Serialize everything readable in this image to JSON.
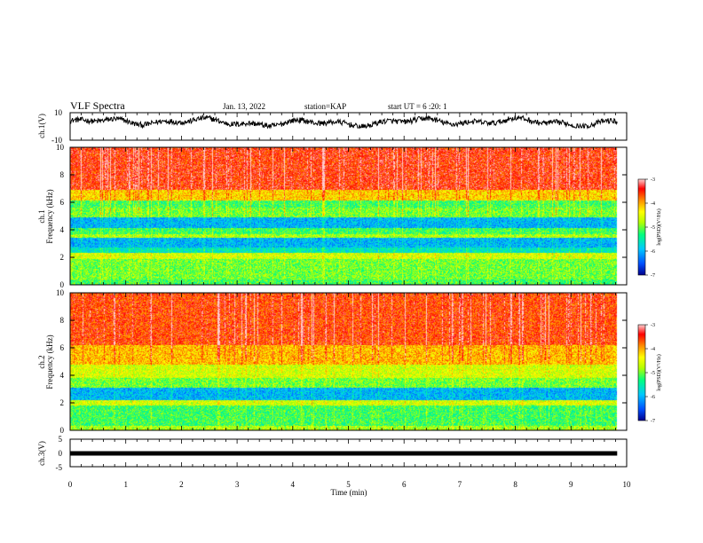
{
  "header": {
    "title": "VLF Spectra",
    "date": "Jan. 13, 2022",
    "station": "station=KAP",
    "start": "start UT = 6 :20: 1"
  },
  "colors": {
    "colormap": [
      "#00008c",
      "#0050ff",
      "#00c8ff",
      "#00ff80",
      "#b4ff00",
      "#ffff00",
      "#ff8c00",
      "#ff0000",
      "#ffd0d0"
    ]
  },
  "chart_data": [
    {
      "type": "line",
      "panel": "ch1-waveform",
      "ylabel": "ch.1(V)",
      "ylim": [
        -10,
        10
      ],
      "yticks": [
        "10",
        "-10"
      ],
      "x_range_min": [
        0,
        9.83
      ],
      "description_values": {
        "mean_V": 3,
        "amplitude_V": 4
      }
    },
    {
      "type": "heatmap",
      "panel": "ch1-spectrogram",
      "ylabel_line1": "ch.1",
      "ylabel_line2": "Frequency (kHz)",
      "ylim": [
        0,
        10
      ],
      "yticks": [
        "0",
        "2",
        "4",
        "6",
        "8",
        "10"
      ],
      "colorbar_label": "log(PSD)(V²/Hz)",
      "colorbar_range": [
        -7,
        -3
      ],
      "colorbar_ticks": [
        "-3",
        "-4",
        "-5",
        "-6",
        "-7"
      ],
      "bands_kHz": [
        {
          "from": 0,
          "to": 0.4,
          "log_psd": -5.2
        },
        {
          "from": 0.4,
          "to": 1.9,
          "log_psd": -5.0
        },
        {
          "from": 1.9,
          "to": 2.3,
          "log_psd": -4.6
        },
        {
          "from": 2.3,
          "to": 2.7,
          "log_psd": -5.6
        },
        {
          "from": 2.7,
          "to": 3.4,
          "log_psd": -6.0
        },
        {
          "from": 3.4,
          "to": 3.7,
          "log_psd": -4.8
        },
        {
          "from": 3.7,
          "to": 4.1,
          "log_psd": -5.2
        },
        {
          "from": 4.1,
          "to": 4.9,
          "log_psd": -6.0
        },
        {
          "from": 4.9,
          "to": 5.6,
          "log_psd": -5.0
        },
        {
          "from": 5.6,
          "to": 6.1,
          "log_psd": -5.2
        },
        {
          "from": 6.1,
          "to": 6.9,
          "log_psd": -4.2
        },
        {
          "from": 6.9,
          "to": 10,
          "log_psd": -3.5
        }
      ]
    },
    {
      "type": "heatmap",
      "panel": "ch2-spectrogram",
      "ylabel_line1": "ch.2",
      "ylabel_line2": "Frequency (kHz)",
      "ylim": [
        0,
        10
      ],
      "yticks": [
        "0",
        "2",
        "4",
        "6",
        "8",
        "10"
      ],
      "colorbar_label": "log(PSD)(V²/Hz)",
      "colorbar_range": [
        -7,
        -3
      ],
      "colorbar_ticks": [
        "-3",
        "-4",
        "-5",
        "-6",
        "-7"
      ],
      "bands_kHz": [
        {
          "from": 0,
          "to": 0.3,
          "log_psd": -4.8
        },
        {
          "from": 0.3,
          "to": 1.8,
          "log_psd": -5.2
        },
        {
          "from": 1.8,
          "to": 2.2,
          "log_psd": -4.6
        },
        {
          "from": 2.2,
          "to": 3.1,
          "log_psd": -6.0
        },
        {
          "from": 3.1,
          "to": 3.8,
          "log_psd": -5.0
        },
        {
          "from": 3.8,
          "to": 4.8,
          "log_psd": -4.6
        },
        {
          "from": 4.8,
          "to": 6.2,
          "log_psd": -4.1
        },
        {
          "from": 6.2,
          "to": 10,
          "log_psd": -3.6
        }
      ]
    },
    {
      "type": "line",
      "panel": "ch3-waveform",
      "ylabel": "ch.3(V)",
      "ylim": [
        -5,
        5
      ],
      "yticks": [
        "5",
        "0",
        "-5"
      ],
      "value_V": 0,
      "xlabel": "Time (min)",
      "xlim": [
        0,
        10
      ],
      "xticks": [
        "0",
        "1",
        "2",
        "3",
        "4",
        "5",
        "6",
        "7",
        "8",
        "9",
        "10"
      ]
    }
  ]
}
